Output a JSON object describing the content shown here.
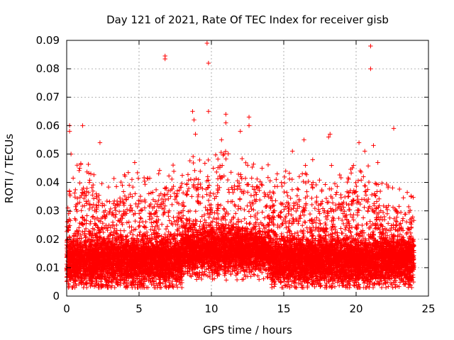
{
  "chart_data": {
    "type": "scatter",
    "title": "Day 121 of 2021, Rate Of TEC Index for receiver gisb",
    "xlabel": "GPS time / hours",
    "ylabel": "ROTI / TECUs",
    "xlim": [
      0,
      25
    ],
    "ylim": [
      0,
      0.09
    ],
    "x_ticks": [
      0,
      5,
      10,
      15,
      20,
      25
    ],
    "y_ticks": [
      0,
      0.01,
      0.02,
      0.03,
      0.04,
      0.05,
      0.06,
      0.07,
      0.08,
      0.09
    ],
    "x_tick_labels": [
      "0",
      "5",
      "10",
      "15",
      "20",
      "25"
    ],
    "y_tick_labels": [
      "0",
      "0.01",
      "0.02",
      "0.03",
      "0.04",
      "0.05",
      "0.06",
      "0.07",
      "0.08",
      "0.09"
    ],
    "grid": true,
    "marker": "+",
    "marker_color": "#ff0000",
    "x_data_range": [
      0,
      24
    ],
    "bulk_band": {
      "median": 0.012,
      "typical_max": 0.025
    },
    "activity_envelope": [
      {
        "x": 0.0,
        "y": 0.02
      },
      {
        "x": 0.5,
        "y": 0.032
      },
      {
        "x": 1.2,
        "y": 0.036
      },
      {
        "x": 2.5,
        "y": 0.028
      },
      {
        "x": 4.0,
        "y": 0.03
      },
      {
        "x": 5.5,
        "y": 0.03
      },
      {
        "x": 7.0,
        "y": 0.032
      },
      {
        "x": 8.5,
        "y": 0.036
      },
      {
        "x": 10.0,
        "y": 0.036
      },
      {
        "x": 11.0,
        "y": 0.037
      },
      {
        "x": 12.5,
        "y": 0.036
      },
      {
        "x": 14.0,
        "y": 0.032
      },
      {
        "x": 15.5,
        "y": 0.03
      },
      {
        "x": 17.0,
        "y": 0.03
      },
      {
        "x": 18.5,
        "y": 0.029
      },
      {
        "x": 20.5,
        "y": 0.034
      },
      {
        "x": 22.0,
        "y": 0.027
      },
      {
        "x": 23.0,
        "y": 0.024
      },
      {
        "x": 24.0,
        "y": 0.022
      }
    ],
    "outliers": [
      {
        "x": 6.8,
        "y": 0.0845
      },
      {
        "x": 6.8,
        "y": 0.0835
      },
      {
        "x": 9.7,
        "y": 0.089
      },
      {
        "x": 9.8,
        "y": 0.082
      },
      {
        "x": 21.0,
        "y": 0.088
      },
      {
        "x": 21.0,
        "y": 0.08
      },
      {
        "x": 0.2,
        "y": 0.06
      },
      {
        "x": 0.2,
        "y": 0.058
      },
      {
        "x": 1.1,
        "y": 0.06
      },
      {
        "x": 8.7,
        "y": 0.065
      },
      {
        "x": 8.8,
        "y": 0.062
      },
      {
        "x": 9.8,
        "y": 0.065
      },
      {
        "x": 11.0,
        "y": 0.064
      },
      {
        "x": 11.0,
        "y": 0.061
      },
      {
        "x": 12.6,
        "y": 0.063
      },
      {
        "x": 12.6,
        "y": 0.06
      },
      {
        "x": 18.2,
        "y": 0.057
      },
      {
        "x": 18.1,
        "y": 0.056
      },
      {
        "x": 22.6,
        "y": 0.059
      },
      {
        "x": 20.2,
        "y": 0.054
      },
      {
        "x": 2.3,
        "y": 0.054
      },
      {
        "x": 16.4,
        "y": 0.055
      },
      {
        "x": 15.6,
        "y": 0.051
      },
      {
        "x": 12.0,
        "y": 0.058
      },
      {
        "x": 8.9,
        "y": 0.057
      },
      {
        "x": 0.3,
        "y": 0.05
      },
      {
        "x": 10.7,
        "y": 0.055
      },
      {
        "x": 21.2,
        "y": 0.053
      },
      {
        "x": 20.6,
        "y": 0.051
      },
      {
        "x": 17.0,
        "y": 0.048
      },
      {
        "x": 16.5,
        "y": 0.046
      },
      {
        "x": 4.7,
        "y": 0.047
      },
      {
        "x": 13.5,
        "y": 0.045
      },
      {
        "x": 21.5,
        "y": 0.047
      },
      {
        "x": 18.3,
        "y": 0.046
      },
      {
        "x": 0.9,
        "y": 0.045
      }
    ]
  }
}
